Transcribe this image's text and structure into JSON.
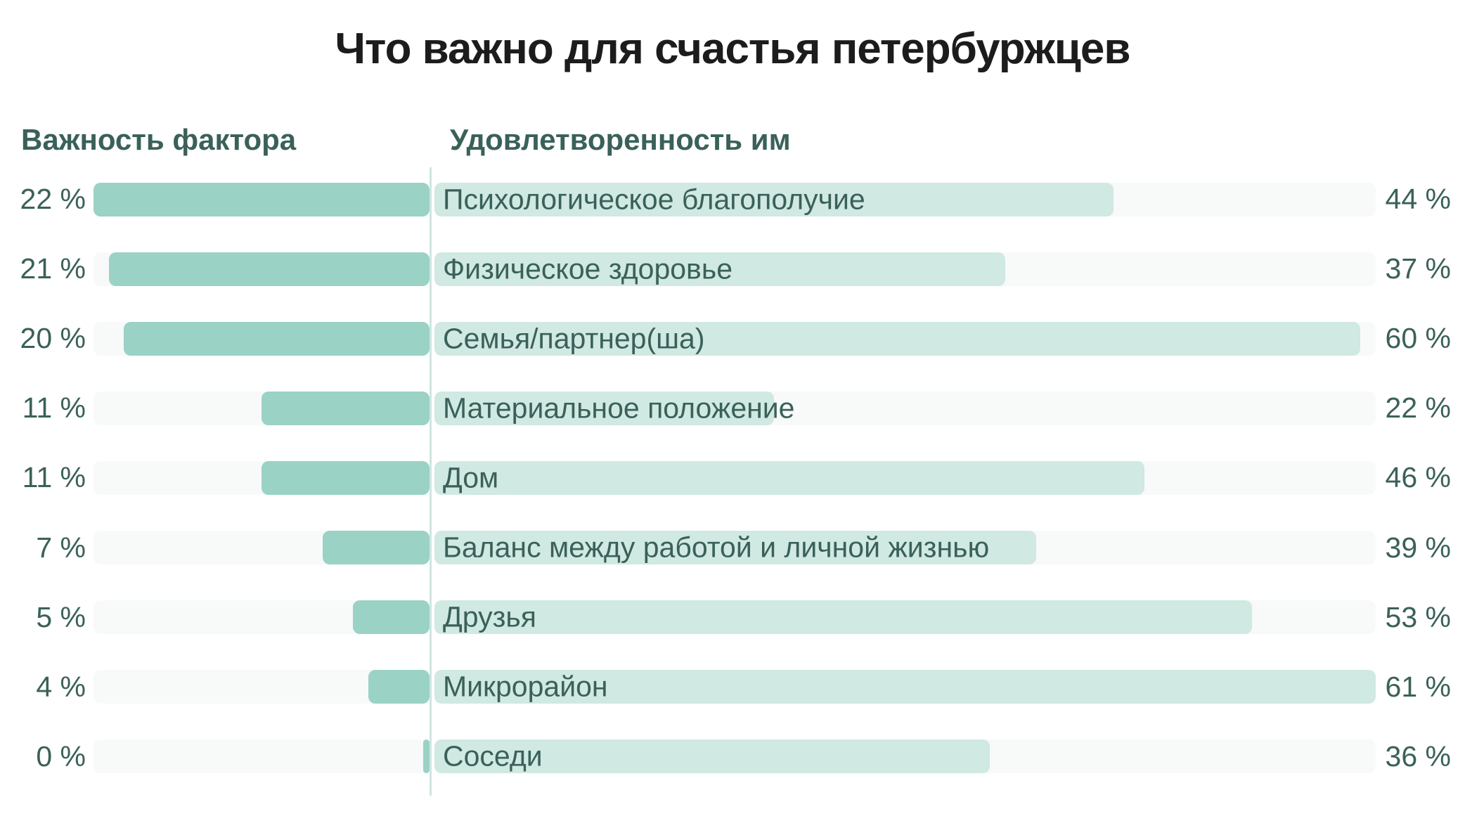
{
  "title": "Что важно для счастья петербуржцев",
  "columns": {
    "left_header": "Важность фактора",
    "right_header": "Удовлетворенность им"
  },
  "chart_data": {
    "type": "bar",
    "subtype": "bidirectional-horizontal",
    "title": "Что важно для счастья петербуржцев",
    "categories": [
      "Психологическое благополучие",
      "Физическое здоровье",
      "Семья/партнер(ша)",
      "Материальное положение",
      "Дом",
      "Баланс между работой и личной жизнью",
      "Друзья",
      "Микрорайон",
      "Соседи"
    ],
    "series": [
      {
        "name": "Важность фактора",
        "side": "left",
        "unit": "%",
        "values": [
          22,
          21,
          20,
          11,
          11,
          7,
          5,
          4,
          0
        ],
        "axis_max": 22
      },
      {
        "name": "Удовлетворенность им",
        "side": "right",
        "unit": "%",
        "values": [
          44,
          37,
          60,
          22,
          46,
          39,
          53,
          61,
          36
        ],
        "axis_max": 61
      }
    ],
    "value_label_format": "{value} %",
    "legend_position": "column-headers",
    "grid": false,
    "colors": {
      "importance_bar": "#9ad2c6",
      "satisfaction_bar": "#d0e9e2",
      "track": "#f8f9f9",
      "divider": "#cfe6e0",
      "label_text": "#3a6159",
      "title_text": "#1c1c1c"
    }
  },
  "rows": [
    {
      "category": "Психологическое благополучие",
      "importance": 22,
      "importance_label": "22 %",
      "satisfaction": 44,
      "satisfaction_label": "44 %"
    },
    {
      "category": "Физическое здоровье",
      "importance": 21,
      "importance_label": "21 %",
      "satisfaction": 37,
      "satisfaction_label": "37 %"
    },
    {
      "category": "Семья/партнер(ша)",
      "importance": 20,
      "importance_label": "20 %",
      "satisfaction": 60,
      "satisfaction_label": "60 %"
    },
    {
      "category": "Материальное положение",
      "importance": 11,
      "importance_label": "11 %",
      "satisfaction": 22,
      "satisfaction_label": "22 %"
    },
    {
      "category": "Дом",
      "importance": 11,
      "importance_label": "11 %",
      "satisfaction": 46,
      "satisfaction_label": "46 %"
    },
    {
      "category": "Баланс между работой и личной жизнью",
      "importance": 7,
      "importance_label": "7 %",
      "satisfaction": 39,
      "satisfaction_label": "39 %"
    },
    {
      "category": "Друзья",
      "importance": 5,
      "importance_label": "5 %",
      "satisfaction": 53,
      "satisfaction_label": "53 %"
    },
    {
      "category": "Микрорайон",
      "importance": 4,
      "importance_label": "4 %",
      "satisfaction": 61,
      "satisfaction_label": "61 %"
    },
    {
      "category": "Соседи",
      "importance": 0,
      "importance_label": "0 %",
      "satisfaction": 36,
      "satisfaction_label": "36 %"
    }
  ]
}
